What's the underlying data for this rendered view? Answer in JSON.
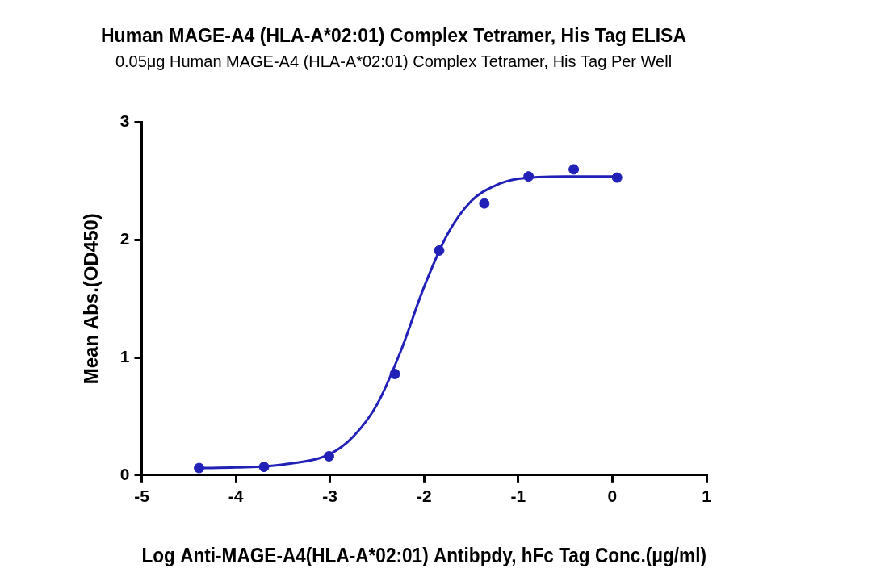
{
  "chart_data": {
    "type": "scatter",
    "title": "Human MAGE-A4 (HLA-A*02:01) Complex Tetramer, His Tag ELISA",
    "subtitle": "0.05μg Human MAGE-A4 (HLA-A*02:01) Complex Tetramer, His Tag Per Well",
    "x_label": "Log Anti-MAGE-A4(HLA-A*02:01) Antibpdy, hFc Tag Conc.(μg/ml)",
    "y_label": "Mean Abs.(OD450)",
    "series": [
      {
        "type": "scatter",
        "color": "#2121b8",
        "marker": "circle",
        "x": [
          -4.39,
          -3.7,
          -3.01,
          -2.31,
          -1.84,
          -1.36,
          -0.89,
          -0.41,
          0.05
        ],
        "values": [
          0.06,
          0.07,
          0.16,
          0.86,
          1.91,
          2.31,
          2.54,
          2.6,
          2.53
        ]
      },
      {
        "type": "line",
        "color": "#2121b8",
        "line_style": "solid",
        "x": [
          -4.39,
          -4.0,
          -3.5,
          -3.0,
          -2.75,
          -2.5,
          -2.25,
          -2.0,
          -1.75,
          -1.5,
          -1.25,
          -1.0,
          -0.5,
          0.05
        ],
        "values": [
          0.06,
          0.065,
          0.09,
          0.18,
          0.33,
          0.6,
          1.05,
          1.6,
          2.05,
          2.33,
          2.46,
          2.52,
          2.54,
          2.54
        ]
      }
    ],
    "xlim": [
      -5,
      1
    ],
    "xticks": [
      -5,
      -4,
      -3,
      -2,
      -1,
      0,
      1
    ],
    "ylim": [
      0,
      3
    ],
    "yticks": [
      0,
      1,
      2,
      3
    ],
    "grid": false
  }
}
